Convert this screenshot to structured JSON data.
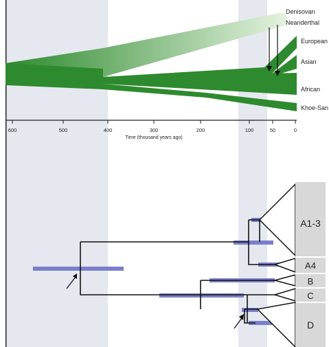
{
  "colors": {
    "band": "#e5e8ee",
    "flow": "#2e8a2e",
    "flow_light": "#cfe8c6",
    "bar": "#7b7fc9",
    "tree": "#111111",
    "clade_box": "#d8d8d8"
  },
  "top_panel": {
    "population_labels": [
      "Denisovan",
      "Neanderthal",
      "European",
      "Asian",
      "African",
      "Khoe-San"
    ],
    "axis_ticks": [
      "600",
      "500",
      "400",
      "300",
      "200",
      "100",
      "50",
      "0"
    ],
    "axis_title": "Time (thousand years ago)"
  },
  "bottom_panel": {
    "clade_labels": [
      "A1-3",
      "A4",
      "B",
      "C",
      "D"
    ]
  }
}
